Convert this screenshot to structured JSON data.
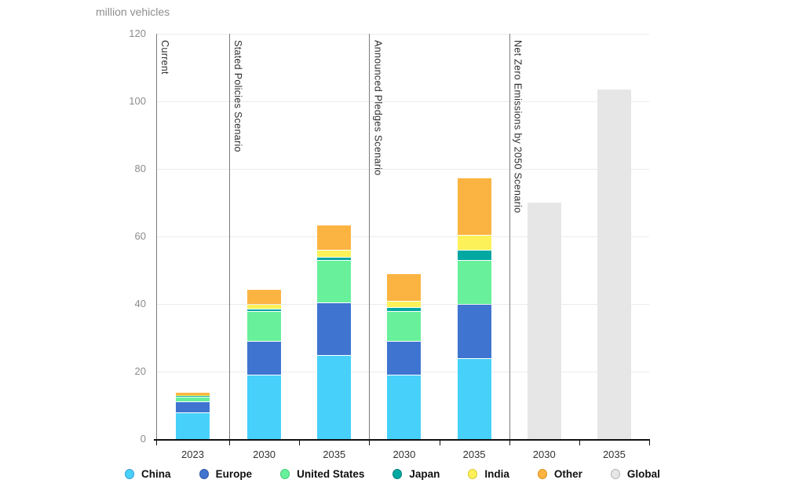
{
  "chart_data": {
    "type": "bar",
    "stacked": true,
    "title": "million vehicles",
    "ylabel": "million vehicles",
    "ylim": [
      0,
      120
    ],
    "yticks": [
      0,
      20,
      40,
      60,
      80,
      100,
      120
    ],
    "grid": true,
    "legend_position": "bottom",
    "regions": [
      "China",
      "Europe",
      "United States",
      "Japan",
      "India",
      "Other"
    ],
    "region_colors": {
      "China": "#47d1fa",
      "Europe": "#3f75d1",
      "United States": "#69f09b",
      "Japan": "#00a8a1",
      "India": "#fdf159",
      "Other": "#fbb441",
      "Global": "#e6e6e6"
    },
    "sections": [
      {
        "label": "Current",
        "bars": [
          {
            "year": "2023",
            "stack": [
              8,
              3.2,
              1.4,
              0.2,
              0.3,
              0.9
            ],
            "total": 14
          }
        ]
      },
      {
        "label": "Stated Policies Scenario",
        "bars": [
          {
            "year": "2030",
            "stack": [
              19,
              10,
              9,
              0.7,
              1.3,
              4.5
            ],
            "total": 44.5
          },
          {
            "year": "2035",
            "stack": [
              25,
              15.5,
              12.5,
              1,
              2,
              7.5
            ],
            "total": 63.5
          }
        ]
      },
      {
        "label": "Announced Pledges Scenario",
        "bars": [
          {
            "year": "2030",
            "stack": [
              19,
              10,
              9,
              1,
              2,
              8
            ],
            "total": 49
          },
          {
            "year": "2035",
            "stack": [
              24,
              16,
              13,
              3,
              4.5,
              17
            ],
            "total": 77.5
          }
        ]
      },
      {
        "label": "Net Zero Emissions by 2050 Scenario",
        "bars": [
          {
            "year": "2030",
            "global": 70,
            "total": 70
          },
          {
            "year": "2035",
            "global": 103.5,
            "total": 103.5
          }
        ]
      }
    ]
  },
  "legend": {
    "entries": [
      {
        "label": "China",
        "fill": "#47d1fa",
        "stroke": "#3a9bd5"
      },
      {
        "label": "Europe",
        "fill": "#3f75d1",
        "stroke": "#2f56a6"
      },
      {
        "label": "United States",
        "fill": "#69f09b",
        "stroke": "#3fcc74"
      },
      {
        "label": "Japan",
        "fill": "#00a8a1",
        "stroke": "#00807b"
      },
      {
        "label": "India",
        "fill": "#fdf159",
        "stroke": "#d9c62e"
      },
      {
        "label": "Other",
        "fill": "#fbb441",
        "stroke": "#d8921f"
      },
      {
        "label": "Global",
        "fill": "#e6e6e6",
        "stroke": "#b5b5b5"
      }
    ]
  }
}
